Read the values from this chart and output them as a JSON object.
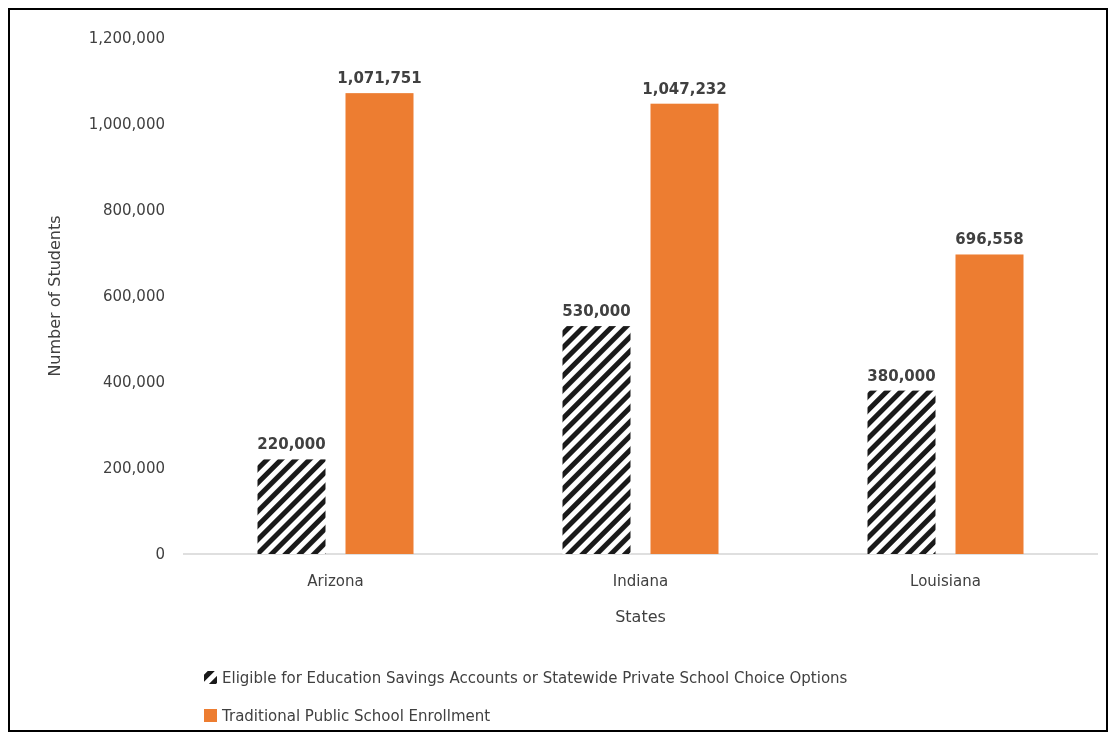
{
  "chart_data": {
    "type": "bar",
    "xlabel": "States",
    "ylabel": "Number of Students",
    "categories": [
      "Arizona",
      "Indiana",
      "Louisiana"
    ],
    "series": [
      {
        "name": "Eligible for Education Savings Accounts or Statewide Private School Choice Options",
        "color": "#1a1a1a",
        "values": [
          220000,
          530000,
          380000
        ],
        "value_labels": [
          "220,000",
          "530,000",
          "380,000"
        ]
      },
      {
        "name": "Traditional Public School Enrollment",
        "color": "#ed7d31",
        "values": [
          1071751,
          1047232,
          696558
        ],
        "value_labels": [
          "1,071,751",
          "1,047,232",
          "696,558"
        ]
      }
    ],
    "ylim": [
      0,
      1200000
    ],
    "yticks": [
      {
        "value": 0,
        "label": "0"
      },
      {
        "value": 200000,
        "label": "200,000"
      },
      {
        "value": 400000,
        "label": "400,000"
      },
      {
        "value": 600000,
        "label": "600,000"
      },
      {
        "value": 800000,
        "label": "800,000"
      },
      {
        "value": 1000000,
        "label": "1,000,000"
      },
      {
        "value": 1200000,
        "label": "1,200,000"
      }
    ],
    "legend": "bottom",
    "grid": false
  }
}
